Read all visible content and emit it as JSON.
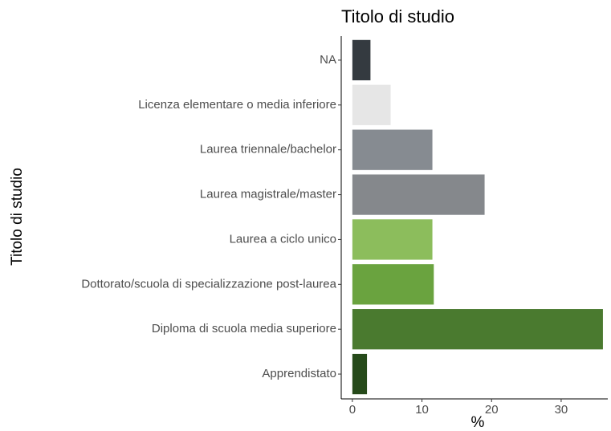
{
  "chart_data": {
    "type": "barh",
    "title": "Titolo di studio",
    "y_label": "Titolo di studio",
    "x_label": "%",
    "categories": [
      "NA",
      "Licenza elementare o media inferiore",
      "Laurea triennale/bachelor",
      "Laurea magistrale/master",
      "Laurea a ciclo unico",
      "Dottorato/scuola di specializzazione post-laurea",
      "Diploma di scuola media superiore",
      "Apprendistato"
    ],
    "values": [
      2.6,
      5.5,
      11.5,
      19,
      11.5,
      11.7,
      36,
      2.1
    ],
    "colors": [
      "#343a40",
      "#e6e6e6",
      "#868b91",
      "#85888c",
      "#8cbd5c",
      "#6aa33f",
      "#4a7a2f",
      "#264a1a"
    ],
    "xlim": [
      -1.6,
      36.7
    ],
    "xticks": [
      0,
      10,
      20,
      30
    ],
    "grid": false
  }
}
